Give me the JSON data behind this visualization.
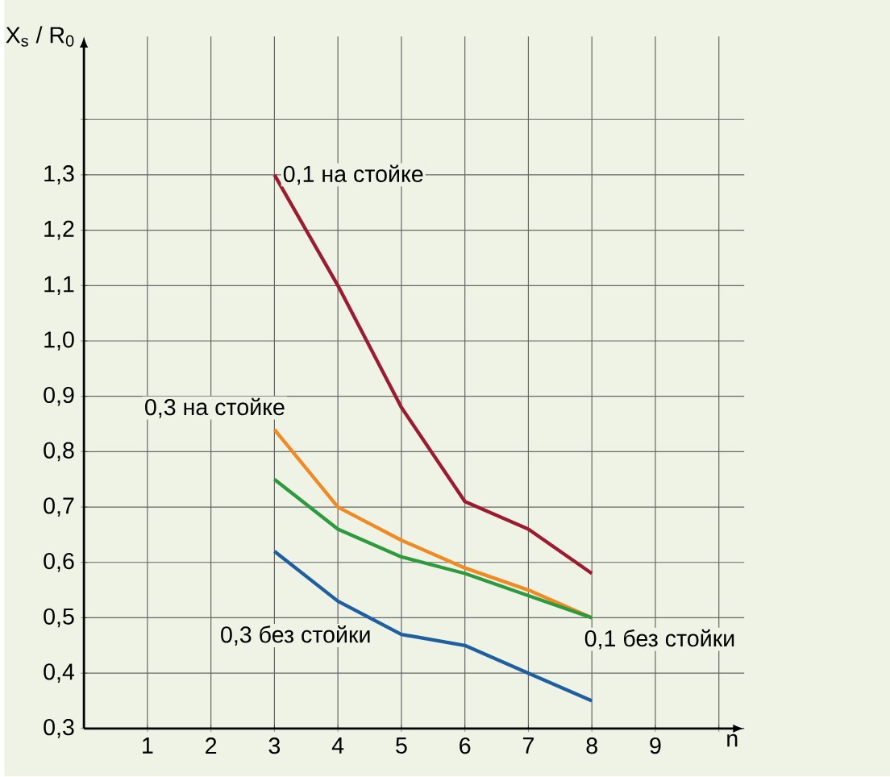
{
  "chart_data": {
    "type": "line",
    "xlabel": "n",
    "ylabel": "X$_{s}$ / R$_{0}$",
    "x": [
      3,
      4,
      5,
      6,
      7,
      8
    ],
    "series": [
      {
        "name": "0,1 на стойке",
        "color": "#9b1b30",
        "values": [
          1.3,
          1.1,
          0.88,
          0.71,
          0.66,
          0.58
        ]
      },
      {
        "name": "0,3 на стойке",
        "color": "#f08a24",
        "values": [
          0.84,
          0.7,
          0.64,
          0.59,
          0.55,
          0.5
        ]
      },
      {
        "name": "0,1 без стойки",
        "color": "#2e9a3e",
        "values": [
          0.75,
          0.66,
          0.61,
          0.58,
          0.54,
          0.5
        ]
      },
      {
        "name": "0,3 без стойки",
        "color": "#1f5fa0",
        "values": [
          0.62,
          0.53,
          0.47,
          0.45,
          0.4,
          0.35
        ]
      }
    ],
    "xlim": [
      0,
      10.4
    ],
    "ylim": [
      0.3,
      1.55
    ],
    "xticks": [
      1,
      2,
      3,
      4,
      5,
      6,
      7,
      8,
      9,
      {
        "value": 10,
        "label": null
      }
    ],
    "yticks": [
      {
        "value": 0.3,
        "label": "0,3"
      },
      {
        "value": 0.4,
        "label": "0,4"
      },
      {
        "value": 0.5,
        "label": "0,5"
      },
      {
        "value": 0.6,
        "label": "0,6"
      },
      {
        "value": 0.7,
        "label": "0,7"
      },
      {
        "value": 0.8,
        "label": "0,8"
      },
      {
        "value": 0.9,
        "label": "0,9"
      },
      {
        "value": 1.0,
        "label": "1,0"
      },
      {
        "value": 1.1,
        "label": "1,1"
      },
      {
        "value": 1.2,
        "label": "1,2"
      },
      {
        "value": 1.3,
        "label": "1,3"
      },
      {
        "value": 1.4,
        "label": null
      }
    ],
    "grid": true,
    "legend": false,
    "marker": "none",
    "line_style": "solid"
  }
}
